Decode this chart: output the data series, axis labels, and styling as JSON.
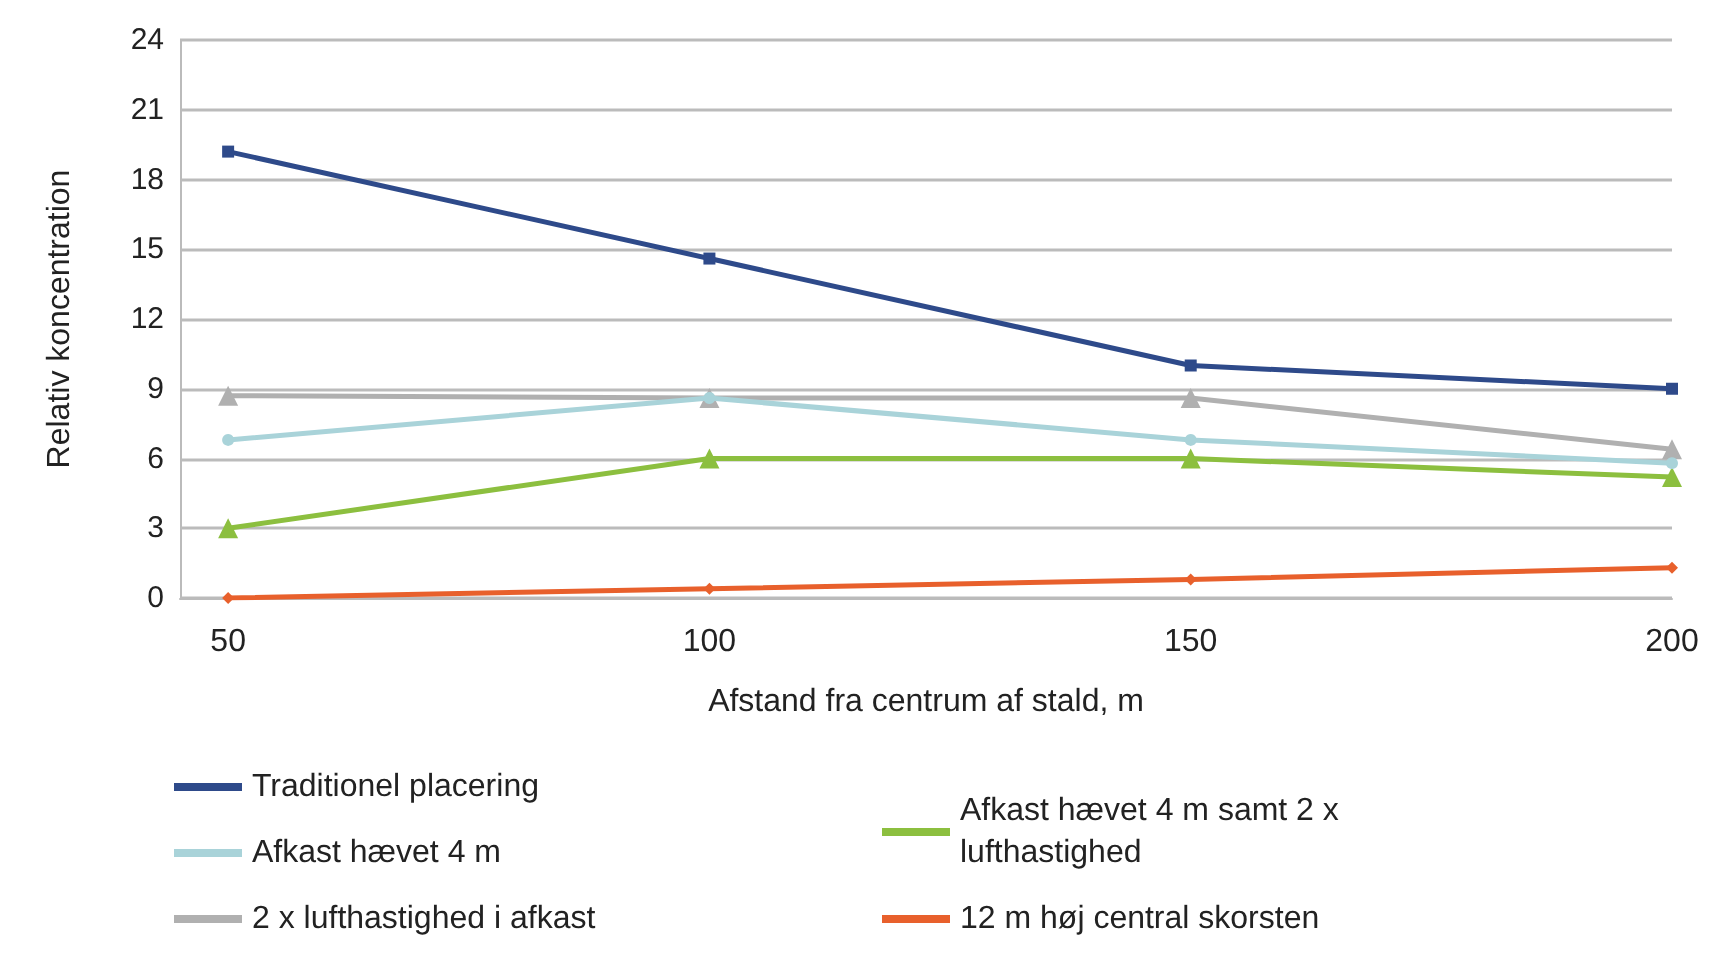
{
  "chart_data": {
    "type": "line",
    "xlabel": "Afstand fra centrum af stald, m",
    "ylabel": "Relativ koncentration",
    "x": [
      50,
      100,
      150,
      200
    ],
    "xlim": [
      45,
      200
    ],
    "xticks": [
      50,
      100,
      150,
      200
    ],
    "ylim": [
      0,
      24
    ],
    "yticks": [
      0,
      3,
      6,
      9,
      12,
      15,
      18,
      21,
      24
    ],
    "grid": "y",
    "legend": "bottom",
    "line_style": "solid",
    "series": [
      {
        "name": "Traditionel placering",
        "color": "#2e4a8a",
        "marker": "square",
        "values": [
          19.2,
          14.6,
          10,
          9
        ]
      },
      {
        "name": "Afkast hævet 4 m",
        "color": "#a9d3d9",
        "marker": "circle",
        "values": [
          6.8,
          8.6,
          6.8,
          5.8
        ]
      },
      {
        "name": "2 x lufthastighed i afkast",
        "color": "#b0b0b0",
        "marker": "triangle",
        "values": [
          8.7,
          8.6,
          8.6,
          6.4
        ]
      },
      {
        "name": "Afkast hævet 4 m samt 2 x lufthastighed",
        "color": "#8cbf3f",
        "marker": "triangle",
        "values": [
          3,
          6,
          6,
          5.2
        ]
      },
      {
        "name": "12 m høj central skorsten",
        "color": "#e8602c",
        "marker": "diamond",
        "values": [
          0,
          0.4,
          0.8,
          1.3
        ]
      }
    ]
  }
}
